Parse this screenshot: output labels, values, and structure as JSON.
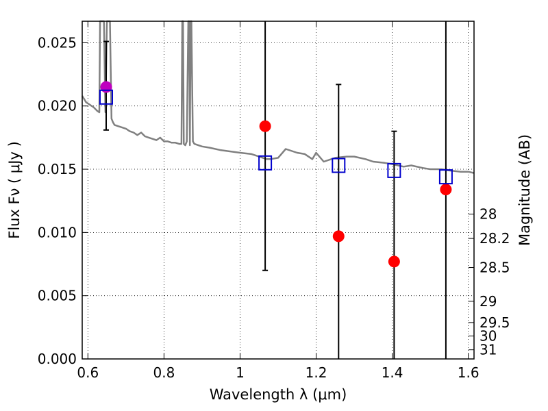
{
  "chart_data": {
    "type": "scatter",
    "xlabel": "Wavelength  λ (μm)",
    "ylabel": "Flux  Fν  ( μJy )",
    "y2label": "Magnitude (AB)",
    "xlim": [
      0.585,
      1.615
    ],
    "ylim": [
      0.0,
      0.0267
    ],
    "grid": true,
    "x_ticks": [
      0.6,
      0.8,
      1.0,
      1.2,
      1.4,
      1.6
    ],
    "x_tick_labels": [
      "0.6",
      "0.8",
      "1",
      "1.2",
      "1.4",
      "1.6"
    ],
    "y_ticks": [
      0.0,
      0.005,
      0.01,
      0.015,
      0.02,
      0.025
    ],
    "y_tick_labels": [
      "0.000",
      "0.005",
      "0.010",
      "0.015",
      "0.020",
      "0.025"
    ],
    "y2_ticks": [
      {
        "label": "28",
        "mag": 28.0
      },
      {
        "label": "28.2",
        "mag": 28.2
      },
      {
        "label": "28.5",
        "mag": 28.5
      },
      {
        "label": "29",
        "mag": 29.0
      },
      {
        "label": "29.5",
        "mag": 29.5
      },
      {
        "label": "30",
        "mag": 30.0
      },
      {
        "label": "31",
        "mag": 31.0
      }
    ],
    "template_spectrum": {
      "color": "#808080",
      "x": [
        0.585,
        0.595,
        0.605,
        0.615,
        0.625,
        0.63,
        0.632,
        0.634,
        0.638,
        0.642,
        0.646,
        0.65,
        0.654,
        0.658,
        0.662,
        0.666,
        0.67,
        0.68,
        0.69,
        0.7,
        0.71,
        0.72,
        0.73,
        0.74,
        0.75,
        0.76,
        0.77,
        0.78,
        0.79,
        0.8,
        0.81,
        0.82,
        0.83,
        0.84,
        0.846,
        0.848,
        0.85,
        0.852,
        0.856,
        0.86,
        0.864,
        0.866,
        0.868,
        0.87,
        0.872,
        0.876,
        0.88,
        0.9,
        0.92,
        0.95,
        1.0,
        1.03,
        1.05,
        1.07,
        1.08,
        1.1,
        1.12,
        1.15,
        1.17,
        1.19,
        1.2,
        1.22,
        1.25,
        1.28,
        1.3,
        1.33,
        1.35,
        1.38,
        1.4,
        1.43,
        1.45,
        1.48,
        1.5,
        1.53,
        1.55,
        1.58,
        1.6,
        1.615
      ],
      "y": [
        0.0208,
        0.0203,
        0.0201,
        0.0199,
        0.0196,
        0.0195,
        0.027,
        0.027,
        0.027,
        0.027,
        0.0195,
        0.027,
        0.027,
        0.027,
        0.019,
        0.0187,
        0.0185,
        0.0184,
        0.0183,
        0.0182,
        0.018,
        0.0179,
        0.0177,
        0.0179,
        0.0176,
        0.0175,
        0.0174,
        0.0173,
        0.0175,
        0.0172,
        0.0172,
        0.0171,
        0.0171,
        0.017,
        0.017,
        0.027,
        0.027,
        0.017,
        0.0169,
        0.0172,
        0.027,
        0.027,
        0.0169,
        0.027,
        0.027,
        0.0172,
        0.017,
        0.0168,
        0.0167,
        0.0165,
        0.0163,
        0.0162,
        0.016,
        0.0158,
        0.0158,
        0.0159,
        0.0166,
        0.0163,
        0.0162,
        0.0158,
        0.0163,
        0.0156,
        0.0159,
        0.016,
        0.016,
        0.0158,
        0.0156,
        0.0155,
        0.0154,
        0.0152,
        0.0153,
        0.0151,
        0.015,
        0.015,
        0.0149,
        0.0148,
        0.0148,
        0.0147
      ]
    },
    "series": [
      {
        "marker": "circle",
        "color": "#ff0000",
        "x": [
          1.066,
          1.259,
          1.405,
          1.541
        ],
        "y": [
          0.0184,
          0.0097,
          0.0077,
          0.0134
        ]
      },
      {
        "marker": "circle",
        "color": "#bf00bf",
        "x": [
          0.648
        ],
        "y": [
          0.0215
        ]
      }
    ],
    "error_bars": {
      "color": "#000000",
      "x": [
        0.648,
        1.066,
        1.259,
        1.405,
        1.541
      ],
      "low": [
        0.0181,
        0.007,
        0.0,
        0.0,
        0.0
      ],
      "high": [
        0.0251,
        0.0267,
        0.0217,
        0.018,
        0.0267
      ]
    },
    "model_points": {
      "marker": "open-square",
      "color": "#0000cc",
      "x": [
        0.648,
        1.066,
        1.259,
        1.405,
        1.541
      ],
      "y": [
        0.0207,
        0.0155,
        0.0153,
        0.0149,
        0.0144
      ]
    }
  }
}
